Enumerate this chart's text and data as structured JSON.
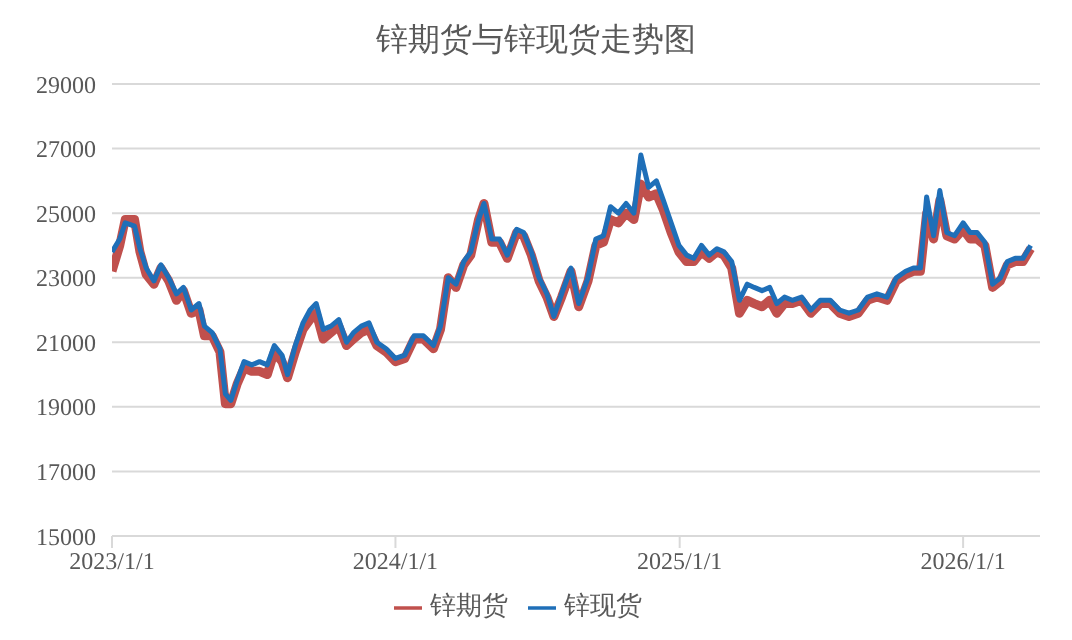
{
  "chart_data": {
    "type": "line",
    "title": "锌期货与锌现货走势图",
    "grid": "y",
    "legend": "bottom",
    "marker": "none",
    "line_style": "solid",
    "xlim": [
      "2023-01-01",
      "2026-04-10"
    ],
    "xticks": [
      {
        "value": "2023-01-01",
        "label": "2023/1/1"
      },
      {
        "value": "2024-01-01",
        "label": "2024/1/1"
      },
      {
        "value": "2025-01-01",
        "label": "2025/1/1"
      },
      {
        "value": "2026-01-01",
        "label": "2026/1/1"
      }
    ],
    "ylim": [
      15000,
      29000
    ],
    "yticks": [
      15000,
      17000,
      19000,
      21000,
      23000,
      25000,
      27000,
      29000
    ],
    "x": [
      "2023-01-01",
      "2023-01-11",
      "2023-01-18",
      "2023-01-30",
      "2023-02-06",
      "2023-02-14",
      "2023-02-24",
      "2023-03-05",
      "2023-03-15",
      "2023-03-25",
      "2023-04-03",
      "2023-04-13",
      "2023-04-23",
      "2023-04-30",
      "2023-05-10",
      "2023-05-20",
      "2023-05-27",
      "2023-06-03",
      "2023-06-11",
      "2023-06-20",
      "2023-06-30",
      "2023-07-10",
      "2023-07-20",
      "2023-07-29",
      "2023-08-08",
      "2023-08-15",
      "2023-08-25",
      "2023-09-04",
      "2023-09-13",
      "2023-09-21",
      "2023-09-30",
      "2023-10-10",
      "2023-10-20",
      "2023-10-30",
      "2023-11-08",
      "2023-11-18",
      "2023-11-28",
      "2023-12-08",
      "2023-12-20",
      "2024-01-01",
      "2024-01-13",
      "2024-01-25",
      "2024-02-06",
      "2024-02-19",
      "2024-02-28",
      "2024-03-09",
      "2024-03-19",
      "2024-03-29",
      "2024-04-07",
      "2024-04-17",
      "2024-04-24",
      "2024-05-04",
      "2024-05-14",
      "2024-05-24",
      "2024-06-05",
      "2024-06-14",
      "2024-06-24",
      "2024-07-04",
      "2024-07-14",
      "2024-07-23",
      "2024-08-02",
      "2024-08-14",
      "2024-08-24",
      "2024-09-05",
      "2024-09-15",
      "2024-09-25",
      "2024-10-04",
      "2024-10-14",
      "2024-10-24",
      "2024-11-03",
      "2024-11-12",
      "2024-11-22",
      "2024-12-02",
      "2024-12-11",
      "2024-12-21",
      "2024-12-31",
      "2025-01-10",
      "2025-01-19",
      "2025-01-29",
      "2025-02-08",
      "2025-02-18",
      "2025-02-27",
      "2025-03-09",
      "2025-03-19",
      "2025-03-29",
      "2025-04-07",
      "2025-04-17",
      "2025-04-27",
      "2025-05-06",
      "2025-05-16",
      "2025-05-26",
      "2025-06-07",
      "2025-06-19",
      "2025-07-01",
      "2025-07-14",
      "2025-07-26",
      "2025-08-07",
      "2025-08-19",
      "2025-08-31",
      "2025-09-12",
      "2025-09-25",
      "2025-10-07",
      "2025-10-19",
      "2025-10-29",
      "2025-11-07",
      "2025-11-15",
      "2025-11-24",
      "2025-12-02",
      "2025-12-11",
      "2025-12-21",
      "2026-01-01",
      "2026-01-10",
      "2026-01-19",
      "2026-01-29",
      "2026-02-08",
      "2026-02-18",
      "2026-02-27",
      "2026-03-09",
      "2026-03-19",
      "2026-03-29"
    ],
    "series": [
      {
        "name": "锌期货",
        "color": "#c0504d",
        "values": [
          23200,
          24000,
          24800,
          24800,
          23800,
          23100,
          22800,
          23300,
          22900,
          22300,
          22600,
          21900,
          22000,
          21200,
          21200,
          20700,
          19100,
          19100,
          19700,
          20200,
          20100,
          20100,
          20000,
          20700,
          20400,
          19900,
          20700,
          21400,
          21700,
          21900,
          21100,
          21300,
          21500,
          20900,
          21100,
          21300,
          21400,
          20900,
          20700,
          20400,
          20500,
          21100,
          21100,
          20800,
          21400,
          23000,
          22700,
          23400,
          23700,
          24800,
          25300,
          24100,
          24100,
          23600,
          24400,
          24300,
          23700,
          22900,
          22400,
          21800,
          22400,
          23200,
          22100,
          22900,
          24000,
          24100,
          24800,
          24700,
          25000,
          24800,
          25900,
          25500,
          25600,
          25100,
          24400,
          23800,
          23500,
          23500,
          23800,
          23600,
          23800,
          23700,
          23300,
          21900,
          22300,
          22200,
          22100,
          22300,
          21900,
          22200,
          22200,
          22300,
          21900,
          22200,
          22200,
          21900,
          21800,
          21900,
          22300,
          22400,
          22300,
          22900,
          23100,
          23200,
          23200,
          25000,
          24200,
          25400,
          24300,
          24200,
          24500,
          24200,
          24200,
          24000,
          22700,
          22900,
          23400,
          23500,
          23500,
          23900
        ]
      },
      {
        "name": "锌现货",
        "color": "#1f6fb8",
        "values": [
          23800,
          24200,
          24700,
          24600,
          23900,
          23300,
          22900,
          23400,
          23000,
          22500,
          22700,
          22000,
          22200,
          21500,
          21300,
          20800,
          19400,
          19200,
          19800,
          20400,
          20300,
          20400,
          20300,
          20900,
          20600,
          20000,
          20900,
          21600,
          22000,
          22200,
          21400,
          21500,
          21700,
          21000,
          21300,
          21500,
          21600,
          21000,
          20800,
          20500,
          20600,
          21200,
          21200,
          20900,
          21500,
          23000,
          22800,
          23500,
          23800,
          24800,
          25300,
          24200,
          24200,
          23700,
          24500,
          24400,
          23800,
          23000,
          22500,
          21800,
          22500,
          23300,
          22200,
          23000,
          24200,
          24300,
          25200,
          25000,
          25300,
          25000,
          26800,
          25800,
          26000,
          25400,
          24700,
          24000,
          23700,
          23600,
          24000,
          23700,
          23900,
          23800,
          23500,
          22300,
          22800,
          22700,
          22600,
          22700,
          22200,
          22400,
          22300,
          22400,
          22000,
          22300,
          22300,
          22000,
          21900,
          22000,
          22400,
          22500,
          22400,
          23000,
          23200,
          23300,
          23300,
          25500,
          24300,
          25700,
          24400,
          24300,
          24700,
          24400,
          24400,
          24100,
          22800,
          23000,
          23500,
          23600,
          23600,
          24000
        ]
      }
    ]
  }
}
